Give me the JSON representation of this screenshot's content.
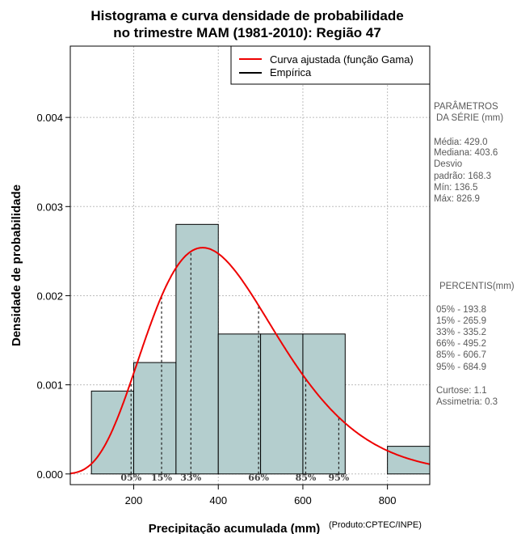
{
  "chart_data": {
    "type": "bar",
    "title_line1": "Histograma e curva densidade de probabilidade",
    "title_line2": "no trimestre MAM (1981-2010): Região 47",
    "xlabel": "Precipitação acumulada (mm)",
    "ylabel": "Densidade de probabilidade",
    "credit": "(Produto:CPTEC/INPE)",
    "xlim": [
      50,
      900
    ],
    "ylim": [
      -0.00012,
      0.0048
    ],
    "xticks": [
      200,
      400,
      600,
      800
    ],
    "yticks": [
      0.0,
      0.001,
      0.002,
      0.003,
      0.004
    ],
    "ytick_labels": [
      "0.000",
      "0.001",
      "0.002",
      "0.003",
      "0.004"
    ],
    "grid": true,
    "bins": [
      {
        "x0": 100,
        "x1": 200,
        "density": 0.00093
      },
      {
        "x0": 200,
        "x1": 300,
        "density": 0.00125
      },
      {
        "x0": 300,
        "x1": 400,
        "density": 0.0028
      },
      {
        "x0": 400,
        "x1": 500,
        "density": 0.00157
      },
      {
        "x0": 500,
        "x1": 600,
        "density": 0.00157
      },
      {
        "x0": 600,
        "x1": 700,
        "density": 0.00157
      },
      {
        "x0": 700,
        "x1": 800,
        "density": 0.0
      },
      {
        "x0": 800,
        "x1": 900,
        "density": 0.00031
      }
    ],
    "gamma_fit": {
      "shape": 6.5,
      "scale": 66.0
    },
    "legend": [
      {
        "label": "Curva ajustada (função Gama)",
        "color": "#ee0000"
      },
      {
        "label": "Empírica",
        "color": "#000000"
      }
    ],
    "legend_position": "top-right",
    "percentile_markers": [
      {
        "label": "05%",
        "x": 193.8
      },
      {
        "label": "15%",
        "x": 265.9
      },
      {
        "label": "33%",
        "x": 335.2
      },
      {
        "label": "66%",
        "x": 495.2
      },
      {
        "label": "85%",
        "x": 606.7
      },
      {
        "label": "95%",
        "x": 684.9
      }
    ]
  },
  "side_panel": {
    "params_header_1": "PARÂMETROS",
    "params_header_2": "DA SÉRIE (mm)",
    "stats": [
      "Média:  429.0",
      "Mediana:  403.6",
      "Desvio",
      "padrão:  168.3",
      "Mín:  136.5",
      "Máx:  826.9"
    ],
    "percentis_header": "PERCENTIS(mm)",
    "percentis": [
      "05% -   193.8",
      "15% -   265.9",
      "33% -   335.2",
      "66% -   495.2",
      "85% -   606.7",
      "95% -   684.9"
    ],
    "shape": [
      "Curtose:  1.1",
      "Assimetria:  0.3"
    ]
  },
  "colors": {
    "bar_fill": "#b4cece",
    "curve": "#ee0000",
    "grid": "#bdbdbd"
  }
}
